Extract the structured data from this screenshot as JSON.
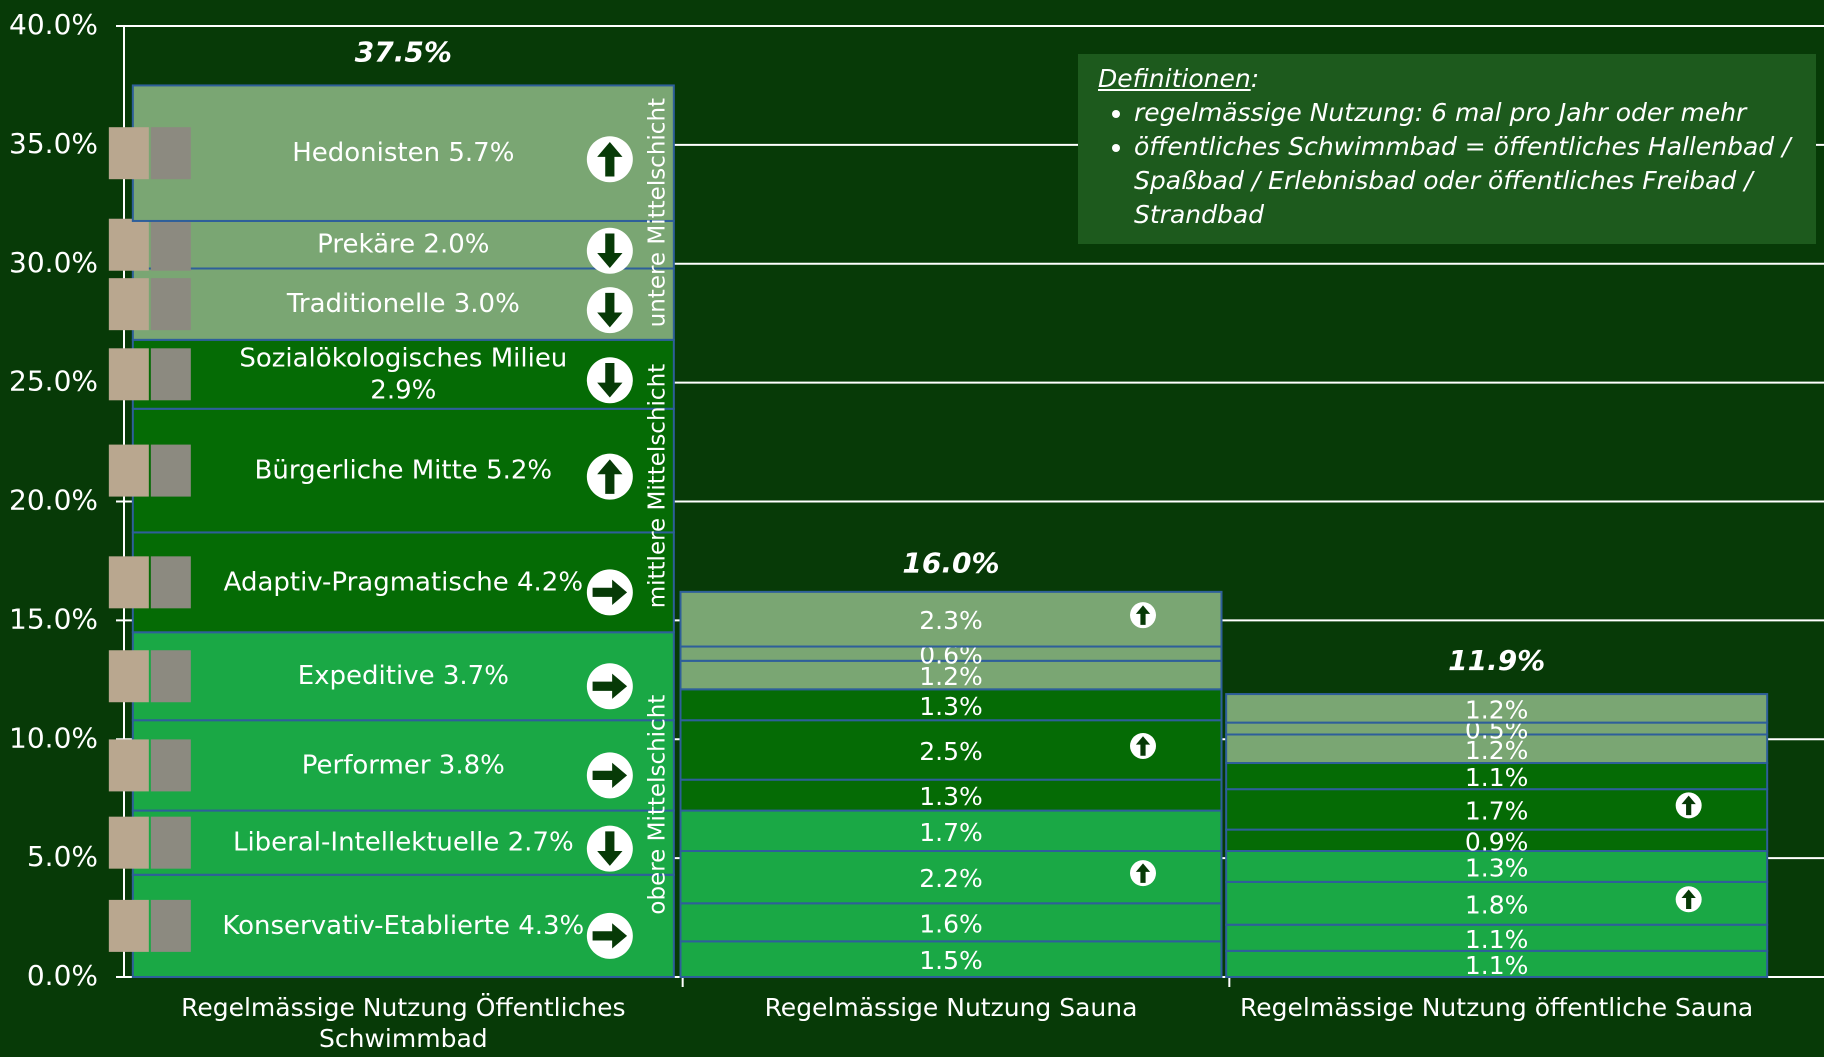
{
  "chart_data": {
    "type": "stacked-bar",
    "categories": [
      "Regelmässige Nutzung Öffentliches Schwimmbad",
      "Regelmässige Nutzung Sauna",
      "Regelmässige Nutzung öffentliche Sauna"
    ],
    "series": [
      {
        "name": "Konservativ-Etablierte",
        "color": "#1aa845",
        "values": [
          4.3,
          1.5,
          1.1
        ],
        "value_labels": [
          "4.3%",
          "1.5%",
          "1.1%"
        ]
      },
      {
        "name": "Liberal-Intellektuelle",
        "color": "#1aa845",
        "values": [
          2.7,
          1.6,
          1.1
        ],
        "value_labels": [
          "2.7%",
          "1.6%",
          "1.1%"
        ]
      },
      {
        "name": "Performer",
        "color": "#1aa845",
        "values": [
          3.8,
          2.2,
          1.8
        ],
        "value_labels": [
          "3.8%",
          "2.2%",
          "1.8%"
        ]
      },
      {
        "name": "Expeditive",
        "color": "#1aa845",
        "values": [
          3.7,
          1.7,
          1.3
        ],
        "value_labels": [
          "3.7%",
          "1.7%",
          "1.3%"
        ]
      },
      {
        "name": "Adaptiv-Pragmatische",
        "color": "#056b05",
        "values": [
          4.2,
          1.3,
          0.9
        ],
        "value_labels": [
          "4.2%",
          "1.3%",
          "0.9%"
        ]
      },
      {
        "name": "Bürgerliche Mitte",
        "color": "#056b05",
        "values": [
          5.2,
          2.5,
          1.7
        ],
        "value_labels": [
          "5.2%",
          "2.5%",
          "1.7%"
        ]
      },
      {
        "name": "Sozialökologisches Milieu",
        "color": "#056b05",
        "values": [
          2.9,
          1.3,
          1.1
        ],
        "value_labels": [
          "2.9%",
          "1.3%",
          "1.1%"
        ]
      },
      {
        "name": "Traditionelle",
        "color": "#7aa673",
        "values": [
          3.0,
          1.2,
          1.2
        ],
        "value_labels": [
          "3.0%",
          "1.2%",
          "1.2%"
        ]
      },
      {
        "name": "Prekäre",
        "color": "#7aa673",
        "values": [
          2.0,
          0.6,
          0.5
        ],
        "value_labels": [
          "2.0%",
          "0.6%",
          "0.5%"
        ]
      },
      {
        "name": "Hedonisten",
        "color": "#7aa673",
        "values": [
          5.7,
          2.3,
          1.2
        ],
        "value_labels": [
          "5.7%",
          "2.3%",
          "1.2%"
        ]
      }
    ],
    "totals": [
      37.5,
      16.0,
      11.9
    ],
    "total_labels": [
      "37.5%",
      "16.0%",
      "11.9%"
    ],
    "groups": [
      "obere Mittelschicht",
      "mittlere Mittelschicht",
      "untere Mittelschicht"
    ],
    "ylim": [
      0,
      40
    ],
    "yticks": [
      {
        "value": 0,
        "label": "0.0%"
      },
      {
        "value": 5,
        "label": "5.0%"
      },
      {
        "value": 10,
        "label": "10.0%"
      },
      {
        "value": 15,
        "label": "15.0%"
      },
      {
        "value": 20,
        "label": "20.0%"
      },
      {
        "value": 25,
        "label": "25.0%"
      },
      {
        "value": 30,
        "label": "30.0%"
      },
      {
        "value": 35,
        "label": "35.0%"
      },
      {
        "value": 40,
        "label": "40.0%"
      }
    ],
    "grid": true
  },
  "definitions": {
    "title": "Definitionen",
    "items": [
      "regelmässige Nutzung: 6 mal pro Jahr oder mehr",
      "öffentliches Schwimmbad = öffentliches Hallenbad / Spaßbad / Erlebnisbad oder öffentliches Freibad / Strandbad"
    ]
  }
}
